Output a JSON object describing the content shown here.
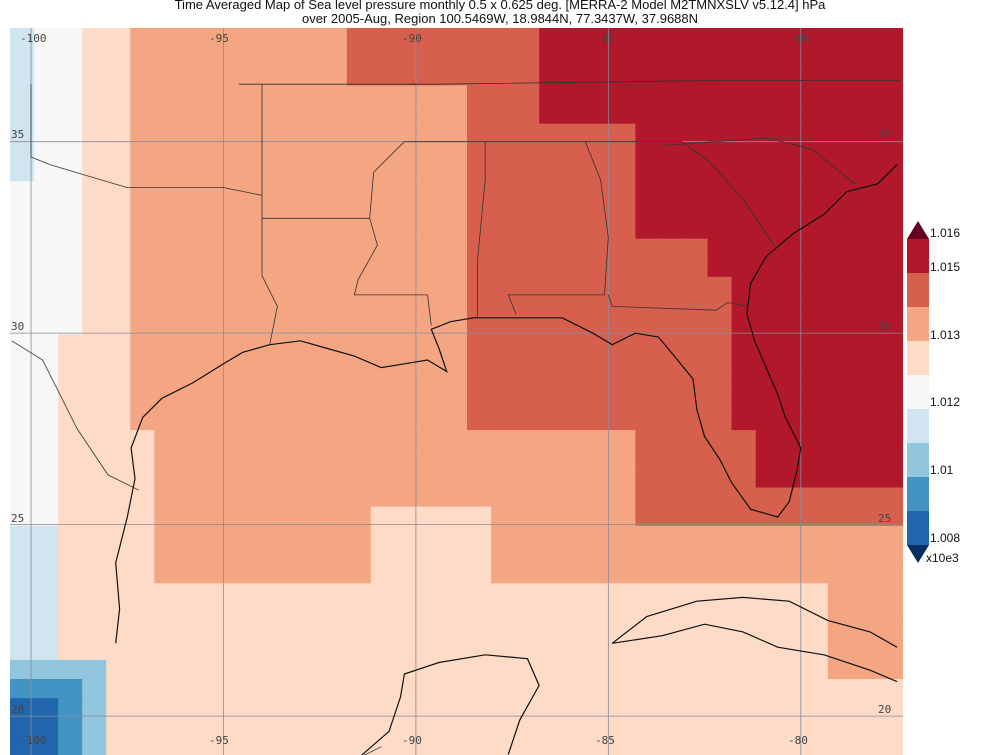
{
  "title": {
    "line1": "Time Averaged Map of Sea level pressure monthly 0.5 x 0.625 deg. [MERRA-2 Model M2TMNXSLV v5.12.4] hPa",
    "line2": "over 2005-Aug, Region 100.5469W, 18.9844N, 77.3437W, 37.9688N"
  },
  "map": {
    "region": {
      "west": -100.5469,
      "south": 18.9844,
      "east": -77.3437,
      "north": 37.9688
    },
    "lon_labels_top": [
      "-100",
      "-95",
      "-90",
      "-85",
      "-80"
    ],
    "lon_labels_bottom": [
      "-100",
      "-95",
      "-90",
      "-85",
      "-80"
    ],
    "lat_labels_left": [
      "35",
      "30",
      "25",
      "20"
    ],
    "lat_labels_right": [
      "35",
      "30",
      "25",
      "20"
    ],
    "variable": "Sea level pressure",
    "units": "hPa"
  },
  "colorbar": {
    "tick_labels": [
      "1.016",
      "1.015",
      "",
      "1.013",
      "",
      "1.012",
      "",
      "1.01",
      "",
      "1.008"
    ],
    "scale_label": "x10e3",
    "colors": [
      "#b2182b",
      "#d6604d",
      "#f4a582",
      "#fddbc7",
      "#f7f7f7",
      "#d1e5f0",
      "#92c5de",
      "#4393c3",
      "#2166ac"
    ],
    "over_color": "#67001f",
    "under_color": "#053061"
  }
}
